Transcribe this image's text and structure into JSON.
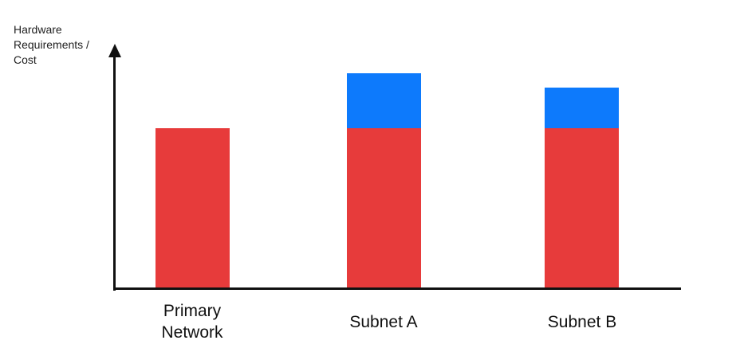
{
  "chart_data": {
    "type": "bar",
    "stacked": true,
    "title": "",
    "xlabel": "",
    "ylabel": "Hardware Requirements / Cost",
    "categories": [
      "Primary Network",
      "Subnet A",
      "Subnet B"
    ],
    "series": [
      {
        "name": "red-segment",
        "color": "#E73B3B",
        "values": [
          100,
          100,
          100
        ]
      },
      {
        "name": "blue-segment",
        "color": "#0D7AFC",
        "values": [
          0,
          34,
          25
        ]
      }
    ],
    "value_axis": {
      "numeric_ticks": false,
      "units": "relative",
      "arrow_direction": "up"
    },
    "legend_position": "none",
    "grid": false
  },
  "colors": {
    "background": "#FFFFFF",
    "axis": "#111111",
    "text": "#1E1E1E",
    "red": "#E73B3B",
    "blue": "#0D7AFC"
  }
}
